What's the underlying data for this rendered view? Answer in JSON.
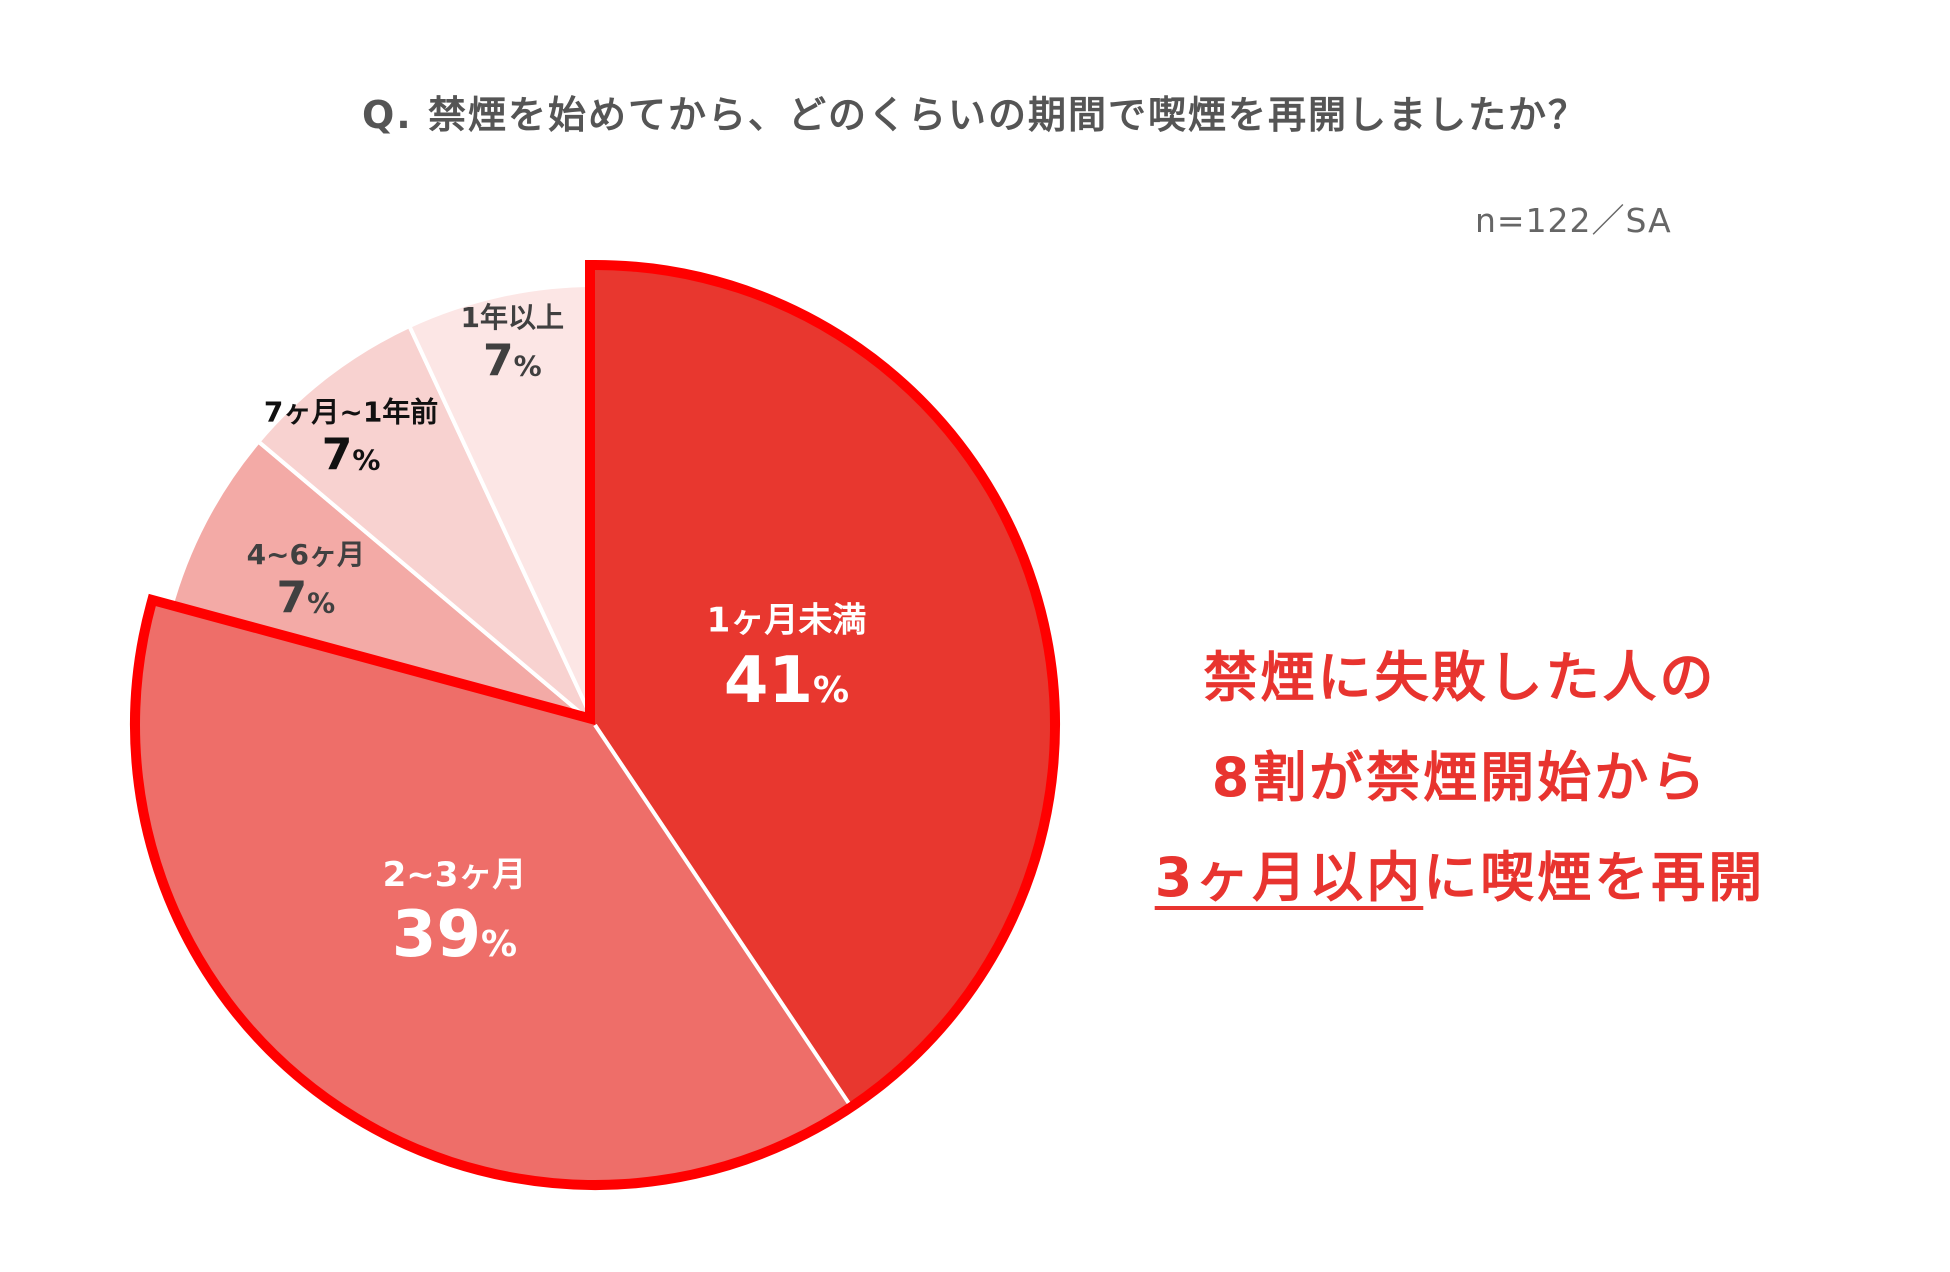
{
  "title": "Q.  禁煙を始めてから、どのくらいの期間で喫煙を再開しましたか？",
  "sample_note": "n=122／SA",
  "callout": {
    "line1": "禁煙に失敗した人の",
    "line2": "8割が禁煙開始から",
    "line3_underlined": "3ヶ月以内",
    "line3_rest": "に喫煙を再開"
  },
  "chart_data": {
    "type": "pie",
    "start": "12 o'clock, clockwise",
    "slices": [
      {
        "label": "1ヶ月未満",
        "value": 41,
        "display": "41",
        "unit": "%",
        "color": "#e8372f",
        "highlighted": true,
        "label_color": "#ffffff"
      },
      {
        "label": "2~3ヶ月",
        "value": 39,
        "display": "39",
        "unit": "%",
        "color": "#ee6e69",
        "highlighted": true,
        "label_color": "#ffffff"
      },
      {
        "label": "4~6ヶ月",
        "value": 7,
        "display": "7",
        "unit": "%",
        "color": "#f3aaa6",
        "highlighted": false,
        "label_color": "#404040"
      },
      {
        "label": "7ヶ月~1年前",
        "value": 7,
        "display": "7",
        "unit": "%",
        "color": "#f8d2d0",
        "highlighted": false,
        "label_color": "#111111"
      },
      {
        "label": "1年以上",
        "value": 7,
        "display": "7",
        "unit": "%",
        "color": "#fce6e5",
        "highlighted": false,
        "label_color": "#404040"
      }
    ],
    "highlight_outline_color": "#ff0000"
  }
}
